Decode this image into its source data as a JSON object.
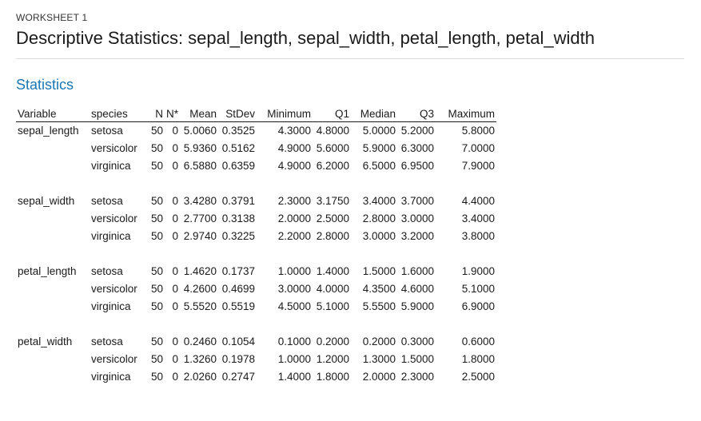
{
  "worksheet_label": "WORKSHEET 1",
  "title": "Descriptive Statistics: sepal_length, sepal_width, petal_length, petal_width",
  "section_heading": "Statistics",
  "table": {
    "headers": {
      "variable": "Variable",
      "species": "species",
      "n": "N",
      "nstar": "N*",
      "mean": "Mean",
      "stdev": "StDev",
      "minimum": "Minimum",
      "q1": "Q1",
      "median": "Median",
      "q3": "Q3",
      "maximum": "Maximum"
    },
    "groups": [
      {
        "variable": "sepal_length",
        "rows": [
          {
            "species": "setosa",
            "n": "50",
            "nstar": "0",
            "mean": "5.0060",
            "stdev": "0.3525",
            "minimum": "4.3000",
            "q1": "4.8000",
            "median": "5.0000",
            "q3": "5.2000",
            "maximum": "5.8000"
          },
          {
            "species": "versicolor",
            "n": "50",
            "nstar": "0",
            "mean": "5.9360",
            "stdev": "0.5162",
            "minimum": "4.9000",
            "q1": "5.6000",
            "median": "5.9000",
            "q3": "6.3000",
            "maximum": "7.0000"
          },
          {
            "species": "virginica",
            "n": "50",
            "nstar": "0",
            "mean": "6.5880",
            "stdev": "0.6359",
            "minimum": "4.9000",
            "q1": "6.2000",
            "median": "6.5000",
            "q3": "6.9500",
            "maximum": "7.9000"
          }
        ]
      },
      {
        "variable": "sepal_width",
        "rows": [
          {
            "species": "setosa",
            "n": "50",
            "nstar": "0",
            "mean": "3.4280",
            "stdev": "0.3791",
            "minimum": "2.3000",
            "q1": "3.1750",
            "median": "3.4000",
            "q3": "3.7000",
            "maximum": "4.4000"
          },
          {
            "species": "versicolor",
            "n": "50",
            "nstar": "0",
            "mean": "2.7700",
            "stdev": "0.3138",
            "minimum": "2.0000",
            "q1": "2.5000",
            "median": "2.8000",
            "q3": "3.0000",
            "maximum": "3.4000"
          },
          {
            "species": "virginica",
            "n": "50",
            "nstar": "0",
            "mean": "2.9740",
            "stdev": "0.3225",
            "minimum": "2.2000",
            "q1": "2.8000",
            "median": "3.0000",
            "q3": "3.2000",
            "maximum": "3.8000"
          }
        ]
      },
      {
        "variable": "petal_length",
        "rows": [
          {
            "species": "setosa",
            "n": "50",
            "nstar": "0",
            "mean": "1.4620",
            "stdev": "0.1737",
            "minimum": "1.0000",
            "q1": "1.4000",
            "median": "1.5000",
            "q3": "1.6000",
            "maximum": "1.9000"
          },
          {
            "species": "versicolor",
            "n": "50",
            "nstar": "0",
            "mean": "4.2600",
            "stdev": "0.4699",
            "minimum": "3.0000",
            "q1": "4.0000",
            "median": "4.3500",
            "q3": "4.6000",
            "maximum": "5.1000"
          },
          {
            "species": "virginica",
            "n": "50",
            "nstar": "0",
            "mean": "5.5520",
            "stdev": "0.5519",
            "minimum": "4.5000",
            "q1": "5.1000",
            "median": "5.5500",
            "q3": "5.9000",
            "maximum": "6.9000"
          }
        ]
      },
      {
        "variable": "petal_width",
        "rows": [
          {
            "species": "setosa",
            "n": "50",
            "nstar": "0",
            "mean": "0.2460",
            "stdev": "0.1054",
            "minimum": "0.1000",
            "q1": "0.2000",
            "median": "0.2000",
            "q3": "0.3000",
            "maximum": "0.6000"
          },
          {
            "species": "versicolor",
            "n": "50",
            "nstar": "0",
            "mean": "1.3260",
            "stdev": "0.1978",
            "minimum": "1.0000",
            "q1": "1.2000",
            "median": "1.3000",
            "q3": "1.5000",
            "maximum": "1.8000"
          },
          {
            "species": "virginica",
            "n": "50",
            "nstar": "0",
            "mean": "2.0260",
            "stdev": "0.2747",
            "minimum": "1.4000",
            "q1": "1.8000",
            "median": "2.0000",
            "q3": "2.3000",
            "maximum": "2.5000"
          }
        ]
      }
    ]
  }
}
